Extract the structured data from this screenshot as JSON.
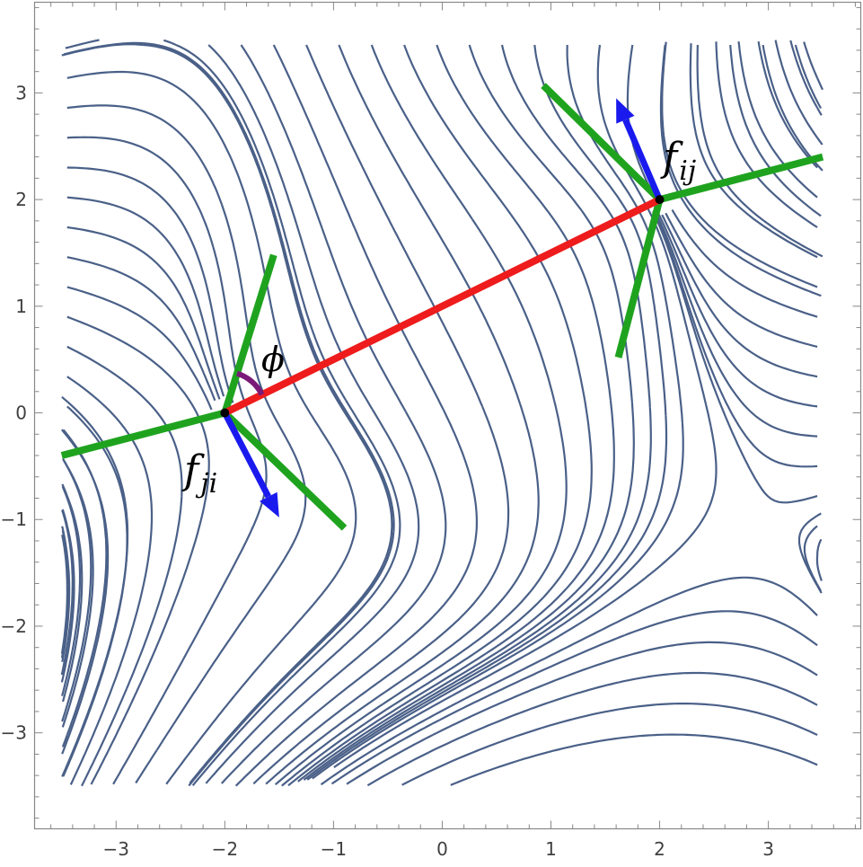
{
  "chart_data": {
    "type": "streamplot",
    "xlim": [
      -3.75,
      3.85
    ],
    "ylim": [
      -3.9,
      3.85
    ],
    "x_ticks": [
      "−3",
      "−2",
      "−1",
      "0",
      "1",
      "2",
      "3"
    ],
    "y_ticks": [
      "−3",
      "−2",
      "−1",
      "0",
      "1",
      "2",
      "3"
    ],
    "x_tick_values": [
      -3,
      -2,
      -1,
      0,
      1,
      2,
      3
    ],
    "y_tick_values": [
      -3,
      -2,
      -1,
      0,
      1,
      2,
      3
    ],
    "nodes": [
      {
        "name": "node-j",
        "x": -2,
        "y": 0
      },
      {
        "name": "node-i",
        "x": 2,
        "y": 2
      }
    ],
    "edge": {
      "from": [
        -2,
        0
      ],
      "to": [
        2,
        2
      ],
      "color": "#ee1c1c"
    },
    "green_arms": [
      {
        "center": [
          -2,
          0
        ],
        "arms": [
          [
            -3.5,
            -0.4
          ],
          [
            -1.55,
            1.48
          ],
          [
            -0.9,
            -1.08
          ]
        ]
      },
      {
        "center": [
          2,
          2
        ],
        "arms": [
          [
            0.93,
            3.07
          ],
          [
            3.5,
            2.4
          ],
          [
            1.62,
            0.52
          ]
        ]
      }
    ],
    "force_arrows": [
      {
        "from": [
          -2,
          0
        ],
        "to": [
          -1.5,
          -0.98
        ],
        "label": "f_{ji}"
      },
      {
        "from": [
          2,
          2
        ],
        "to": [
          1.6,
          2.95
        ],
        "label": "f_{ij}"
      }
    ],
    "angle_label": "ϕ",
    "labels": {
      "f_ij_base": "f",
      "f_ij_sub": "ij",
      "f_ji_base": "f",
      "f_ji_sub": "ji"
    },
    "colors": {
      "stream": "#4a6088",
      "edge": "#ee1c1c",
      "arm": "#1fa31f",
      "arrow": "#1a1aee",
      "angle": "#7a1a78",
      "frame": "#888888"
    }
  }
}
